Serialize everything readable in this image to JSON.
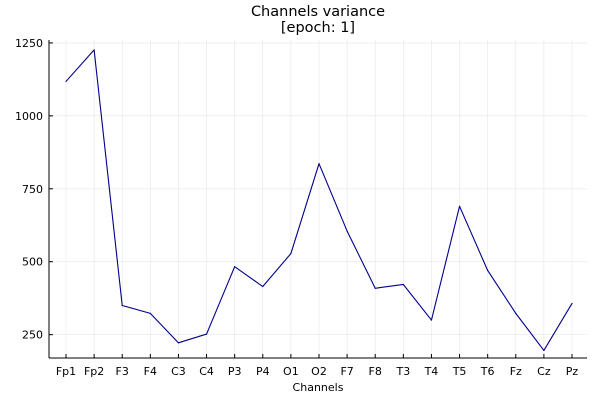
{
  "chart_data": {
    "type": "line",
    "title": "Channels variance",
    "subtitle": "[epoch: 1]",
    "xlabel": "Channels",
    "ylabel": "",
    "categories": [
      "Fp1",
      "Fp2",
      "F3",
      "F4",
      "C3",
      "C4",
      "P3",
      "P4",
      "O1",
      "O2",
      "F7",
      "F8",
      "T3",
      "T4",
      "T5",
      "T6",
      "Fz",
      "Cz",
      "Pz"
    ],
    "series": [
      {
        "values": [
          1118,
          1226,
          350,
          323,
          222,
          252,
          483,
          415,
          528,
          836,
          605,
          409,
          422,
          300,
          690,
          470,
          323,
          196,
          357
        ],
        "color": "#00008b"
      }
    ],
    "ylim": [
      170,
      1260
    ],
    "yticks": [
      250,
      500,
      750,
      1000,
      1250
    ],
    "grid": true,
    "legend": "none"
  }
}
